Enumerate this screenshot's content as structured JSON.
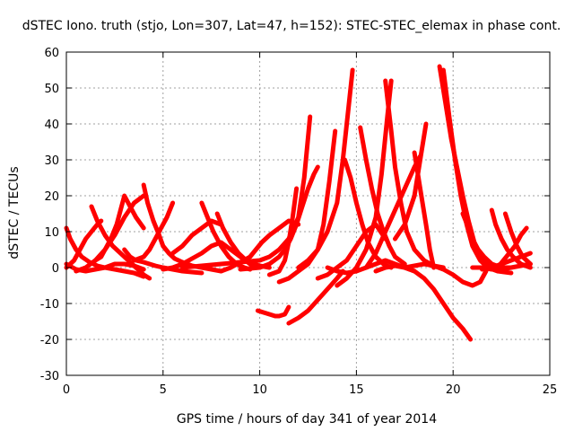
{
  "chart_data": {
    "type": "line",
    "title": "dSTEC Iono. truth (stjo, Lon=307, Lat=47, h=152): STEC-STEC_elemax in phase cont.",
    "xlabel": "GPS time / hours of day 341 of year 2014",
    "ylabel": "dSTEC  / TECUs",
    "xlim": [
      0,
      25
    ],
    "ylim": [
      -30,
      60
    ],
    "xticks": [
      0,
      5,
      10,
      15,
      20,
      25
    ],
    "yticks": [
      -30,
      -20,
      -10,
      0,
      10,
      20,
      30,
      40,
      50,
      60
    ],
    "xtick_labels": [
      "0",
      "5",
      "10",
      "15",
      "20",
      "25"
    ],
    "ytick_labels": [
      "-30",
      "-20",
      "-10",
      "0",
      "10",
      "20",
      "30",
      "40",
      "50",
      "60"
    ],
    "grid": true,
    "legend": "none",
    "color": "#ff0000",
    "series": [
      {
        "x": [
          0.0,
          0.2,
          0.5,
          0.8,
          1.2,
          1.6,
          2.0,
          2.5,
          3.0,
          3.5,
          4.0
        ],
        "y": [
          11,
          8,
          5,
          3,
          1.5,
          0.5,
          0,
          -0.5,
          -1,
          -1.5,
          -2.5
        ]
      },
      {
        "x": [
          0.0,
          0.4,
          0.7,
          1.0,
          1.3,
          1.6,
          1.8
        ],
        "y": [
          0,
          2,
          5,
          8,
          10,
          12,
          13
        ]
      },
      {
        "x": [
          0.5,
          1.0,
          1.5,
          2.0,
          2.5,
          3.0,
          3.5,
          4.0
        ],
        "y": [
          -1,
          0,
          2,
          5,
          9,
          14,
          18,
          20
        ]
      },
      {
        "x": [
          0.0,
          0.5,
          1.0,
          1.5,
          2.0,
          2.5,
          3.0,
          3.5,
          4.0
        ],
        "y": [
          1,
          -0.5,
          -1,
          -0.5,
          0,
          1,
          1,
          0.5,
          -0.5
        ]
      },
      {
        "x": [
          1.3,
          1.6,
          2.0,
          2.4,
          2.8,
          3.2,
          3.6,
          4.0,
          4.3
        ],
        "y": [
          17,
          13,
          9,
          6,
          4,
          2,
          0,
          -2,
          -3
        ]
      },
      {
        "x": [
          1.5,
          1.8,
          2.0,
          2.3,
          2.6,
          2.8,
          3.0,
          3.3,
          3.6,
          4.0
        ],
        "y": [
          2,
          3,
          5,
          8,
          12,
          16,
          20,
          17,
          14,
          11
        ]
      },
      {
        "x": [
          3.0,
          3.3,
          3.6,
          4.0,
          4.3,
          4.6,
          5.0,
          5.5,
          6.0,
          7.0
        ],
        "y": [
          5,
          3,
          2,
          1.5,
          1,
          0.5,
          0,
          -0.5,
          -1,
          -1.5
        ]
      },
      {
        "x": [
          4.0,
          4.2,
          4.5,
          4.8,
          5.0,
          5.3,
          5.6,
          6.0,
          6.5,
          7.0,
          7.5,
          8.0
        ],
        "y": [
          23,
          18,
          13,
          9,
          6,
          4,
          2.5,
          1.5,
          0.5,
          0,
          -0.5,
          -1
        ]
      },
      {
        "x": [
          3.5,
          4.0,
          4.3,
          4.6,
          4.9,
          5.2,
          5.5
        ],
        "y": [
          2,
          3,
          5,
          8,
          11,
          14,
          18
        ]
      },
      {
        "x": [
          5.0,
          5.5,
          6.0,
          6.5,
          7.0,
          7.5,
          8.0,
          8.5,
          9.0,
          9.5,
          10.0
        ],
        "y": [
          -0.5,
          0,
          1,
          2.5,
          4,
          6,
          7,
          5,
          3,
          1,
          0
        ]
      },
      {
        "x": [
          5.5,
          6.0,
          6.5,
          7.0,
          7.5,
          8.0
        ],
        "y": [
          4,
          6,
          9,
          11,
          13,
          12
        ]
      },
      {
        "x": [
          7.0,
          7.3,
          7.6,
          8.0,
          8.4,
          8.8,
          9.2,
          9.5
        ],
        "y": [
          18,
          14,
          10,
          6,
          3,
          1,
          0,
          -0.5
        ]
      },
      {
        "x": [
          7.8,
          8.1,
          8.5,
          8.9,
          9.3,
          9.7,
          10.0,
          10.5
        ],
        "y": [
          15,
          11,
          7,
          4,
          2,
          1,
          0.5,
          0
        ]
      },
      {
        "x": [
          8.0,
          8.5,
          9.0,
          9.5,
          9.8,
          10.1,
          10.5,
          11.0,
          11.5,
          12.0
        ],
        "y": [
          -1,
          0,
          1.5,
          3,
          5,
          7,
          9,
          11,
          13,
          12
        ]
      },
      {
        "x": [
          6.0,
          7.0,
          8.0,
          9.0,
          10.0,
          10.5,
          11.0,
          11.5,
          12.0,
          12.3,
          12.6
        ],
        "y": [
          0,
          0.5,
          1,
          1.5,
          2,
          3,
          5,
          8,
          14,
          25,
          42
        ]
      },
      {
        "x": [
          9.0,
          10.0,
          10.5,
          11.0,
          11.3,
          11.6,
          11.9,
          12.2,
          12.5,
          12.8,
          13.0
        ],
        "y": [
          -0.5,
          0,
          1,
          3,
          5,
          8,
          12,
          17,
          22,
          26,
          28
        ]
      },
      {
        "x": [
          10.5,
          11.0,
          11.3,
          11.5,
          11.7,
          11.9
        ],
        "y": [
          -2,
          -1,
          2,
          7,
          14,
          22
        ]
      },
      {
        "x": [
          9.9,
          10.2,
          10.5,
          10.8,
          11.0,
          11.3,
          11.5
        ],
        "y": [
          -12,
          -12.5,
          -13,
          -13.5,
          -13.5,
          -13,
          -11
        ]
      },
      {
        "x": [
          11.0,
          11.5,
          12.0,
          12.5,
          13.0,
          13.3,
          13.6,
          13.9
        ],
        "y": [
          -4,
          -3,
          -1,
          1,
          5,
          12,
          24,
          38
        ]
      },
      {
        "x": [
          11.5,
          12.0,
          12.5,
          13.0,
          13.5,
          14.0,
          14.3
        ],
        "y": [
          -15.5,
          -14,
          -12,
          -9,
          -6,
          -3,
          -1
        ]
      },
      {
        "x": [
          12.0,
          12.5,
          13.0,
          13.5,
          14.0,
          14.3,
          14.6,
          14.8
        ],
        "y": [
          0,
          2,
          5,
          10,
          18,
          30,
          45,
          55
        ]
      },
      {
        "x": [
          13.0,
          13.5,
          14.0,
          14.5,
          15.0,
          15.5,
          16.0,
          16.5
        ],
        "y": [
          -3,
          -2,
          0,
          2,
          6,
          10,
          12,
          8
        ]
      },
      {
        "x": [
          13.5,
          14.0,
          14.5,
          15.0,
          15.5,
          16.0,
          16.5,
          17.0,
          17.5,
          18.0
        ],
        "y": [
          0,
          -1,
          -1.5,
          -1,
          0,
          1,
          2,
          1,
          0,
          -1
        ]
      },
      {
        "x": [
          14.4,
          14.7,
          15.0,
          15.3,
          15.6,
          16.0,
          16.4,
          16.8
        ],
        "y": [
          30,
          25,
          18,
          12,
          7,
          3,
          1,
          0
        ]
      },
      {
        "x": [
          14.0,
          14.5,
          15.0,
          15.5,
          16.0,
          16.3,
          16.6,
          16.8
        ],
        "y": [
          -5,
          -3,
          0,
          5,
          14,
          26,
          42,
          52
        ]
      },
      {
        "x": [
          15.2,
          15.5,
          15.8,
          16.1,
          16.4,
          16.7,
          17.0,
          17.5
        ],
        "y": [
          39,
          30,
          22,
          15,
          10,
          6,
          3,
          1
        ]
      },
      {
        "x": [
          16.5,
          16.8,
          17.0,
          17.3,
          17.6,
          18.0,
          18.5,
          19.0,
          19.5
        ],
        "y": [
          52,
          38,
          28,
          18,
          10,
          5,
          2,
          0.5,
          0
        ]
      },
      {
        "x": [
          15.5,
          16.0,
          16.5,
          17.0,
          17.5,
          18.0,
          18.3
        ],
        "y": [
          0,
          4,
          10,
          16,
          22,
          28,
          31
        ]
      },
      {
        "x": [
          16.0,
          16.5,
          17.0,
          17.5,
          18.0,
          18.5,
          19.0,
          19.5,
          20.0,
          20.5,
          20.9
        ],
        "y": [
          -1,
          0,
          0.5,
          0,
          -1,
          -3,
          -6,
          -10,
          -14,
          -17,
          -20
        ]
      },
      {
        "x": [
          17.0,
          17.5,
          18.0,
          18.3,
          18.6
        ],
        "y": [
          8,
          12,
          20,
          30,
          40
        ]
      },
      {
        "x": [
          18.0,
          18.3,
          18.6,
          18.8,
          19.0
        ],
        "y": [
          32,
          22,
          12,
          5,
          0
        ]
      },
      {
        "x": [
          19.3,
          19.6,
          19.9,
          20.2,
          20.5,
          20.8,
          21.1,
          21.5,
          22.0,
          22.5
        ],
        "y": [
          56,
          46,
          36,
          28,
          20,
          13,
          7,
          2,
          0,
          -1
        ]
      },
      {
        "x": [
          19.5,
          19.8,
          20.1,
          20.4,
          20.7,
          21.0,
          21.4,
          21.8,
          22.3,
          23.0
        ],
        "y": [
          55,
          42,
          30,
          20,
          12,
          6,
          2,
          0,
          -1,
          -1.5
        ]
      },
      {
        "x": [
          17.5,
          18.0,
          18.5,
          19.0,
          19.5,
          20.0,
          20.5,
          21.0,
          21.4,
          21.7
        ],
        "y": [
          0,
          0.5,
          1,
          0.5,
          -0.5,
          -2,
          -4,
          -5,
          -4,
          -1
        ]
      },
      {
        "x": [
          20.5,
          20.8,
          21.0,
          21.3,
          21.6,
          22.0,
          22.5,
          23.0
        ],
        "y": [
          15,
          11,
          8,
          5,
          3,
          1,
          0,
          0
        ]
      },
      {
        "x": [
          22.0,
          22.2,
          22.5,
          22.8,
          23.1,
          23.5,
          24.0
        ],
        "y": [
          16,
          12,
          8,
          5,
          3,
          1,
          0
        ]
      },
      {
        "x": [
          22.7,
          23.0,
          23.3,
          23.6,
          24.0
        ],
        "y": [
          15,
          10,
          6,
          3,
          1
        ]
      },
      {
        "x": [
          21.5,
          22.0,
          22.5,
          23.0,
          23.5,
          24.0
        ],
        "y": [
          -0.5,
          0,
          1,
          2,
          3,
          4
        ]
      },
      {
        "x": [
          22.3,
          22.6,
          22.9,
          23.2,
          23.5,
          23.8
        ],
        "y": [
          0,
          2,
          4,
          6,
          9,
          11
        ]
      },
      {
        "x": [
          21.0,
          21.5,
          22.0,
          22.5,
          23.0,
          23.5,
          24.0
        ],
        "y": [
          0,
          0,
          -0.5,
          -0.5,
          0,
          0.5,
          1
        ]
      }
    ]
  }
}
